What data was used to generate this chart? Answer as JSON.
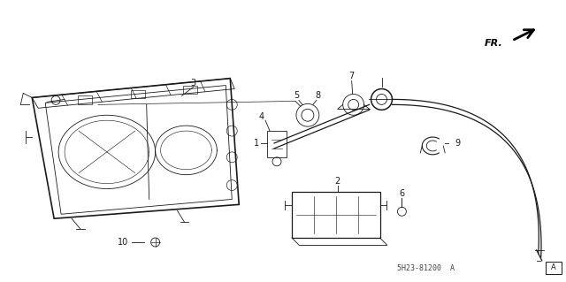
{
  "bg_color": "#ffffff",
  "line_color": "#1a1a1a",
  "text_color": "#1a1a1a",
  "part_number_text": "5H23-81200  A",
  "fr_label": "FR."
}
